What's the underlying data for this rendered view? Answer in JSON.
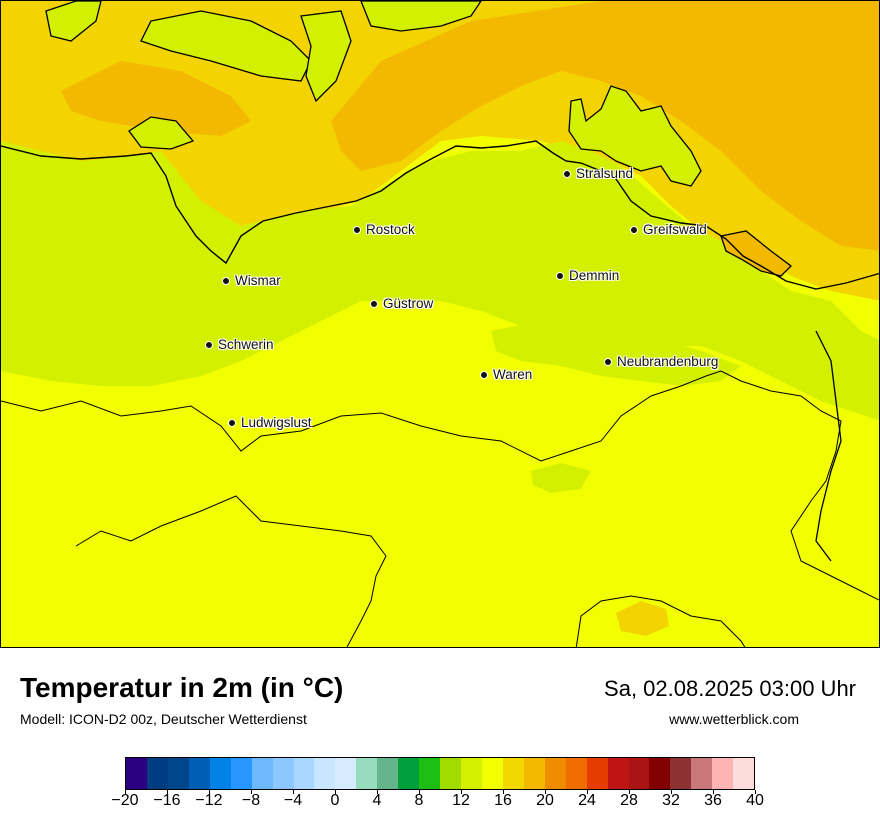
{
  "title": "Temperatur in 2m (in °C)",
  "model_line": "Modell: ICON-D2 00z, Deutscher Wetterdienst",
  "datetime": "Sa, 02.08.2025 03:00 Uhr",
  "website": "www.wetterblick.com",
  "colors": {
    "sea_warm": "#f2b900",
    "sea": "#f3d400",
    "land_green": "#d2f000",
    "land_yellow": "#f2ff00"
  },
  "cities": [
    {
      "name": "Stralsund"
    },
    {
      "name": "Rostock"
    },
    {
      "name": "Greifswald"
    },
    {
      "name": "Wismar"
    },
    {
      "name": "Demmin"
    },
    {
      "name": "Güstrow"
    },
    {
      "name": "Schwerin"
    },
    {
      "name": "Neubrandenburg"
    },
    {
      "name": "Waren"
    },
    {
      "name": "Ludwigslust"
    }
  ],
  "legend": {
    "colors": [
      "#2d0082",
      "#003c82",
      "#00468c",
      "#005fb4",
      "#0082e6",
      "#2896ff",
      "#6eb9ff",
      "#8cc8ff",
      "#aad7ff",
      "#c8e6ff",
      "#d7ebff",
      "#96dcbe",
      "#64b48c",
      "#00a03c",
      "#1ebe14",
      "#a0dc00",
      "#d2f000",
      "#f2ff00",
      "#f2d800",
      "#f2b900",
      "#f08c00",
      "#f06e00",
      "#e63c00",
      "#be1414",
      "#aa1414",
      "#820000",
      "#8c3232",
      "#c87878",
      "#ffb4b4",
      "#ffdcdc"
    ],
    "ticks": [
      "−20",
      "−16",
      "−12",
      "−8",
      "−4",
      "0",
      "4",
      "8",
      "12",
      "16",
      "20",
      "24",
      "28",
      "32",
      "36",
      "40"
    ]
  }
}
